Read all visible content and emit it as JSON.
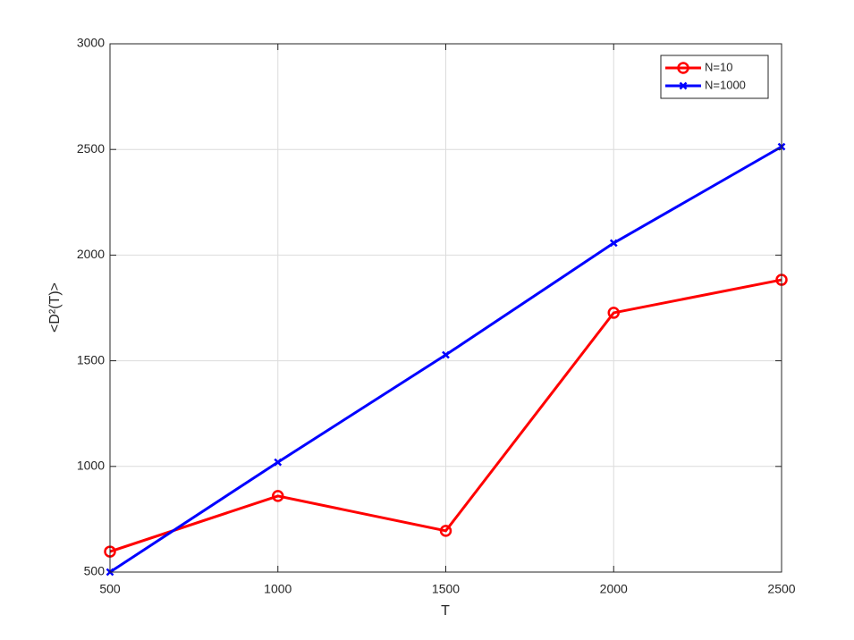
{
  "chart_data": {
    "type": "line",
    "xlabel": "T",
    "ylabel": "<D²(T)>",
    "x": [
      500,
      1000,
      1500,
      2000,
      2500
    ],
    "series": [
      {
        "name": "N=10",
        "color": "#ff0000",
        "marker": "o",
        "values": [
          597,
          860,
          695,
          1727,
          1883
        ]
      },
      {
        "name": "N=1000",
        "color": "#0000ff",
        "marker": "x",
        "values": [
          500,
          1020,
          1528,
          2057,
          2513
        ]
      }
    ],
    "xlim": [
      500,
      2500
    ],
    "xticks": [
      500,
      1000,
      1500,
      2000,
      2500
    ],
    "ylim": [
      500,
      3000
    ],
    "yticks": [
      500,
      1000,
      1500,
      2000,
      2500,
      3000
    ],
    "grid": true,
    "legend": "northeast"
  }
}
